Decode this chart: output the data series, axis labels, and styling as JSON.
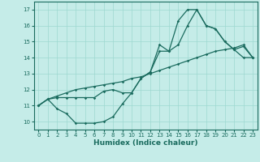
{
  "xlabel": "Humidex (Indice chaleur)",
  "background_color": "#c5ece8",
  "grid_color": "#9dd8d0",
  "line_color": "#1a6b5e",
  "xlim": [
    -0.5,
    23.5
  ],
  "ylim": [
    9.5,
    17.5
  ],
  "xticks": [
    0,
    1,
    2,
    3,
    4,
    5,
    6,
    7,
    8,
    9,
    10,
    11,
    12,
    13,
    14,
    15,
    16,
    17,
    18,
    19,
    20,
    21,
    22,
    23
  ],
  "yticks": [
    10,
    11,
    12,
    13,
    14,
    15,
    16,
    17
  ],
  "line1_x": [
    0,
    1,
    2,
    3,
    4,
    5,
    6,
    7,
    8,
    9,
    10,
    11,
    12,
    13,
    14,
    15,
    16,
    17,
    18,
    19,
    20,
    21,
    22,
    23
  ],
  "line1_y": [
    11.0,
    11.4,
    10.8,
    10.5,
    9.9,
    9.9,
    9.9,
    10.0,
    10.3,
    11.1,
    11.8,
    12.7,
    13.1,
    14.8,
    14.4,
    16.3,
    17.0,
    17.0,
    16.0,
    15.8,
    15.0,
    14.5,
    14.0,
    14.0
  ],
  "line2_x": [
    0,
    1,
    2,
    3,
    4,
    5,
    6,
    7,
    8,
    9,
    10,
    11,
    12,
    13,
    14,
    15,
    16,
    17,
    18,
    19,
    20,
    21,
    22,
    23
  ],
  "line2_y": [
    11.0,
    11.4,
    11.5,
    11.5,
    11.5,
    11.5,
    11.5,
    11.9,
    12.0,
    11.8,
    11.8,
    12.7,
    13.1,
    14.4,
    14.4,
    14.8,
    16.0,
    17.0,
    16.0,
    15.8,
    15.0,
    14.5,
    14.7,
    14.0
  ],
  "line3_x": [
    0,
    1,
    2,
    3,
    4,
    5,
    6,
    7,
    8,
    9,
    10,
    11,
    12,
    13,
    14,
    15,
    16,
    17,
    18,
    19,
    20,
    21,
    22,
    23
  ],
  "line3_y": [
    11.0,
    11.4,
    11.6,
    11.8,
    12.0,
    12.1,
    12.2,
    12.3,
    12.4,
    12.5,
    12.7,
    12.8,
    13.0,
    13.2,
    13.4,
    13.6,
    13.8,
    14.0,
    14.2,
    14.4,
    14.5,
    14.6,
    14.8,
    14.0
  ]
}
